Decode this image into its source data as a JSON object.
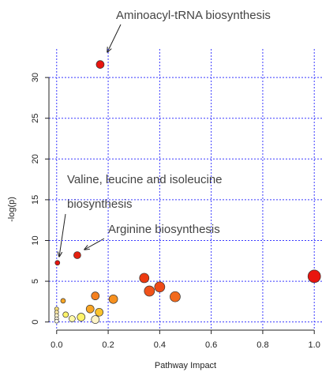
{
  "chart_data": {
    "type": "scatter",
    "x_label": "Pathway Impact",
    "y_label": "-log(p)",
    "xlim": [
      -0.03,
      1.03
    ],
    "ylim": [
      -1,
      33.5
    ],
    "xticks": [
      {
        "value": 0,
        "label": "0.0"
      },
      {
        "value": 0.2,
        "label": "0.2"
      },
      {
        "value": 0.4,
        "label": "0.4"
      },
      {
        "value": 0.6,
        "label": "0.6"
      },
      {
        "value": 0.8,
        "label": "0.8"
      },
      {
        "value": 1,
        "label": "1.0"
      }
    ],
    "yticks": [
      0,
      5,
      10,
      15,
      20,
      25,
      30
    ],
    "grid": true,
    "grid_color": "#3a3aff",
    "x": [
      0.169,
      0.003,
      0.08,
      0.34,
      1.0,
      0.36,
      0.4,
      0.46,
      0.15,
      0.22,
      0.13,
      0.165,
      0.025,
      0.15,
      0.095,
      0.06,
      0.035,
      0.0,
      0.0,
      0.0,
      0.0,
      0.0
    ],
    "values": [
      31.6,
      7.26,
      8.2,
      5.4,
      5.6,
      3.8,
      4.3,
      3.1,
      3.2,
      2.8,
      1.6,
      1.2,
      2.6,
      0.3,
      0.6,
      0.4,
      0.9,
      1.6,
      1.2,
      0.8,
      0.4,
      0.1
    ],
    "sizes": [
      5,
      3,
      4.5,
      6,
      8,
      6.5,
      6.5,
      6.5,
      5,
      5.5,
      5,
      5,
      3,
      5,
      5,
      4,
      3.5,
      2.5,
      2.5,
      2.5,
      2.5,
      2.5
    ],
    "colors": [
      "#e8150f",
      "#e8150f",
      "#e3200f",
      "#ec3a10",
      "#e8150f",
      "#f0521a",
      "#ee4a18",
      "#f26a1c",
      "#f4801f",
      "#f6901f",
      "#f8a524",
      "#fbc32c",
      "#f8a524",
      "#fff4c8",
      "#fff36a",
      "#fff9a8",
      "#fff36a",
      "#fde07a",
      "#fde9a0",
      "#fff3c8",
      "#fff8e0",
      "#fffbee"
    ],
    "annotations": [
      "Aminoacyl-tRNA biosynthesis",
      "Valine, leucine and isoleucine",
      "biosynthesis",
      "Arginine biosynthesis"
    ]
  }
}
